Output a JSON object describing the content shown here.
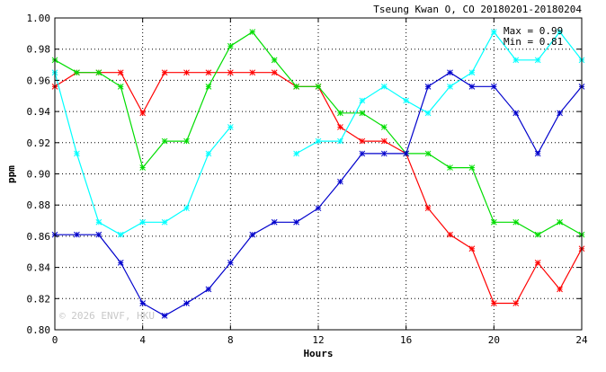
{
  "chart_data": {
    "type": "line",
    "title": "Tseung Kwan O, CO 20180201-20180204",
    "xlabel": "Hours",
    "ylabel": "ppm",
    "xlim": [
      0,
      24
    ],
    "ylim": [
      0.8,
      1.0
    ],
    "x_ticks": [
      0,
      4,
      8,
      12,
      16,
      20,
      24
    ],
    "x_tick_labels": [
      "0",
      "4",
      "8",
      "12",
      "16",
      "20",
      "24"
    ],
    "y_ticks": [
      0.8,
      0.82,
      0.84,
      0.86,
      0.88,
      0.9,
      0.92,
      0.94,
      0.96,
      0.98,
      1.0
    ],
    "y_tick_labels": [
      "0.80",
      "0.82",
      "0.84",
      "0.86",
      "0.88",
      "0.90",
      "0.92",
      "0.94",
      "0.96",
      "0.98",
      "1.00"
    ],
    "grid": true,
    "stats": {
      "max_label": "Max = 0.99",
      "min_label": "Min = 0.81"
    },
    "watermark": "© 2026 ENVF, HKU",
    "x": [
      0,
      1,
      2,
      3,
      4,
      5,
      6,
      7,
      8,
      9,
      10,
      11,
      12,
      13,
      14,
      15,
      16,
      17,
      18,
      19,
      20,
      21,
      22,
      23,
      24
    ],
    "series": [
      {
        "color": "#ff0000",
        "values": [
          0.956,
          0.965,
          0.965,
          0.965,
          0.939,
          0.965,
          0.965,
          0.965,
          0.965,
          0.965,
          0.965,
          0.956,
          0.956,
          0.93,
          0.921,
          0.921,
          0.913,
          0.878,
          0.861,
          0.852,
          0.817,
          0.817,
          0.843,
          0.826,
          0.852
        ]
      },
      {
        "color": "#00dd00",
        "values": [
          0.973,
          0.965,
          0.965,
          0.956,
          0.904,
          0.921,
          0.921,
          0.956,
          0.982,
          0.991,
          0.973,
          0.956,
          0.956,
          0.939,
          0.939,
          0.93,
          0.913,
          0.913,
          0.904,
          0.904,
          0.869,
          0.869,
          0.861,
          0.869,
          0.861
        ]
      },
      {
        "color": "#00ffff",
        "values": [
          0.965,
          0.913,
          0.869,
          0.861,
          0.869,
          0.869,
          0.878,
          0.913,
          0.93,
          null,
          null,
          0.913,
          0.921,
          0.921,
          0.947,
          0.956,
          0.947,
          0.939,
          0.956,
          0.965,
          0.991,
          0.973,
          0.973,
          0.991,
          0.973
        ]
      },
      {
        "color": "#0000cc",
        "values": [
          0.861,
          0.861,
          0.861,
          0.843,
          0.817,
          0.809,
          0.817,
          0.826,
          0.843,
          0.861,
          0.869,
          0.869,
          0.878,
          0.895,
          0.913,
          0.913,
          0.913,
          0.956,
          0.965,
          0.956,
          0.956,
          0.939,
          0.913,
          0.939,
          0.956
        ]
      }
    ]
  }
}
